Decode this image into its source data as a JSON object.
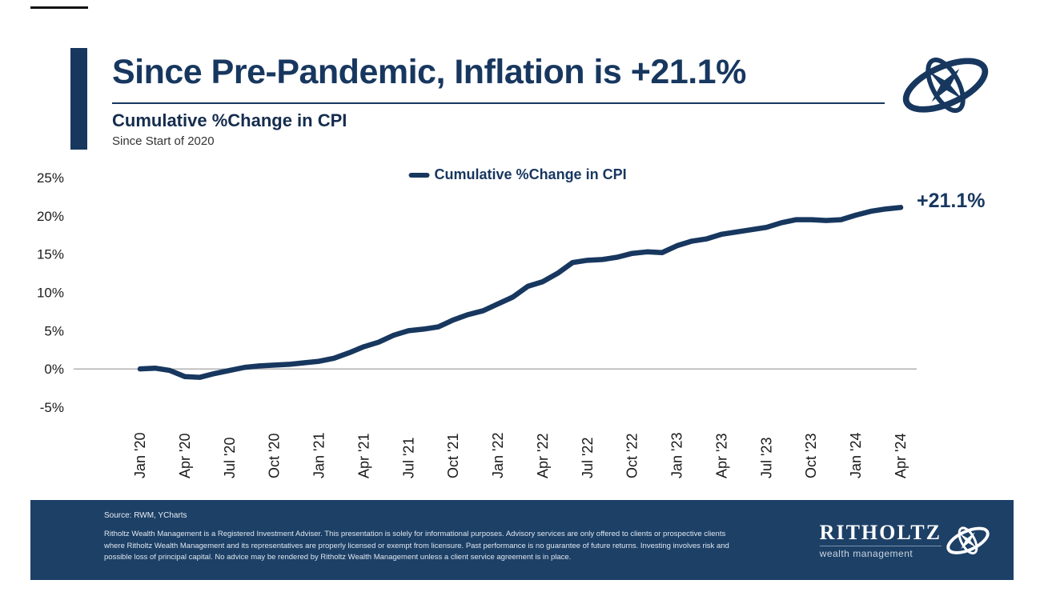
{
  "header": {
    "title": "Since Pre-Pandemic, Inflation is +21.1%",
    "subtitle": "Cumulative %Change in CPI",
    "subsubtitle": "Since Start of 2020"
  },
  "chart_data": {
    "type": "line",
    "title": "Cumulative %Change in CPI",
    "legend_label": "Cumulative %Change in CPI",
    "end_label": "+21.1%",
    "line_color": "#17375f",
    "zero_line": true,
    "legend_position": "top-center",
    "grid": false,
    "ylim": [
      -5,
      25
    ],
    "yticks": [
      25,
      20,
      15,
      10,
      5,
      0,
      -5
    ],
    "ytick_suffix": "%",
    "x_tick_every": 3,
    "x_tick_labels": [
      "Jan '20",
      "Apr '20",
      "Jul '20",
      "Oct '20",
      "Jan '21",
      "Apr '21",
      "Jul '21",
      "Oct '21",
      "Jan '22",
      "Apr '22",
      "Jul '22",
      "Oct '22",
      "Jan '23",
      "Apr '23",
      "Jul '23",
      "Oct '23",
      "Jan '24",
      "Apr '24"
    ],
    "x_unit": "month",
    "values": [
      0.0,
      0.1,
      -0.2,
      -1.0,
      -1.1,
      -0.6,
      -0.2,
      0.2,
      0.4,
      0.5,
      0.6,
      0.8,
      1.0,
      1.4,
      2.1,
      2.9,
      3.5,
      4.4,
      5.0,
      5.2,
      5.5,
      6.4,
      7.1,
      7.6,
      8.5,
      9.4,
      10.8,
      11.4,
      12.5,
      13.9,
      14.2,
      14.3,
      14.6,
      15.1,
      15.3,
      15.2,
      16.1,
      16.7,
      17.0,
      17.6,
      17.9,
      18.2,
      18.5,
      19.1,
      19.5,
      19.5,
      19.4,
      19.5,
      20.1,
      20.6,
      20.9,
      21.1
    ]
  },
  "footer": {
    "source": "Source: RWM, YCharts",
    "disclaimer": "Ritholtz Wealth Management is a Registered Investment Adviser. This presentation is solely for informational purposes. Advisory services are only offered to clients or prospective clients where Ritholtz Wealth Management and its representatives are properly licensed or exempt from licensure. Past performance is no guarantee of future returns. Investing involves risk and possible loss of principal capital. No advice may be rendered by Ritholtz Wealth Management unless a client service agreement is in place.",
    "brand": "RITHOLTZ",
    "brand_sub": "wealth management"
  },
  "colors": {
    "navy": "#17375f",
    "footer_bg": "#1d4066",
    "zero_line": "#999999"
  }
}
